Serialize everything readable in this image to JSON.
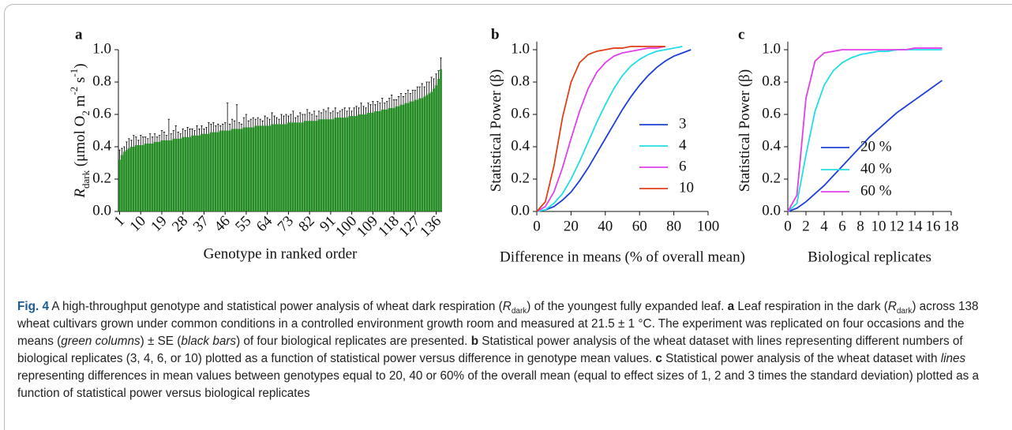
{
  "chart_data": [
    {
      "type": "bar",
      "panel": "a",
      "xlabel": "Genotype in ranked order",
      "ylabel": [
        {
          "text": "R",
          "style": "italic"
        },
        {
          "text": "dark",
          "style": "sub"
        },
        {
          "text": " (μmol O",
          "style": "normal"
        },
        {
          "text": "2",
          "style": "sub"
        },
        {
          "text": " m",
          "style": "normal"
        },
        {
          "text": "-2",
          "style": "sup"
        },
        {
          "text": " s",
          "style": "normal"
        },
        {
          "text": "-1",
          "style": "sup"
        },
        {
          "text": ")",
          "style": "normal"
        }
      ],
      "categories": [
        "1",
        null,
        null,
        null,
        null,
        null,
        null,
        null,
        null,
        "10",
        null,
        null,
        null,
        null,
        null,
        null,
        null,
        null,
        "19",
        null,
        null,
        null,
        null,
        null,
        null,
        null,
        null,
        "28",
        null,
        null,
        null,
        null,
        null,
        null,
        null,
        null,
        "37",
        null,
        null,
        null,
        null,
        null,
        null,
        null,
        null,
        "46",
        null,
        null,
        null,
        null,
        null,
        null,
        null,
        null,
        "55",
        null,
        null,
        null,
        null,
        null,
        null,
        null,
        null,
        "64",
        null,
        null,
        null,
        null,
        null,
        null,
        null,
        null,
        "73",
        null,
        null,
        null,
        null,
        null,
        null,
        null,
        null,
        "82",
        null,
        null,
        null,
        null,
        null,
        null,
        null,
        null,
        "91",
        null,
        null,
        null,
        null,
        null,
        null,
        null,
        null,
        "100",
        null,
        null,
        null,
        null,
        null,
        null,
        null,
        null,
        "109",
        null,
        null,
        null,
        null,
        null,
        null,
        null,
        null,
        "118",
        null,
        null,
        null,
        null,
        null,
        null,
        null,
        null,
        "127",
        null,
        null,
        null,
        null,
        null,
        null,
        null,
        null,
        "136",
        null,
        null
      ],
      "values": [
        0.32,
        0.35,
        0.37,
        0.38,
        0.39,
        0.4,
        0.4,
        0.41,
        0.41,
        0.41,
        0.41,
        0.42,
        0.42,
        0.42,
        0.42,
        0.43,
        0.43,
        0.43,
        0.44,
        0.44,
        0.44,
        0.44,
        0.44,
        0.45,
        0.45,
        0.45,
        0.45,
        0.46,
        0.46,
        0.46,
        0.46,
        0.47,
        0.47,
        0.47,
        0.47,
        0.48,
        0.48,
        0.48,
        0.48,
        0.49,
        0.49,
        0.49,
        0.49,
        0.5,
        0.5,
        0.5,
        0.5,
        0.5,
        0.51,
        0.51,
        0.51,
        0.51,
        0.51,
        0.52,
        0.52,
        0.52,
        0.52,
        0.52,
        0.53,
        0.53,
        0.53,
        0.53,
        0.53,
        0.53,
        0.53,
        0.54,
        0.54,
        0.54,
        0.54,
        0.54,
        0.54,
        0.54,
        0.55,
        0.55,
        0.55,
        0.55,
        0.55,
        0.55,
        0.55,
        0.56,
        0.56,
        0.56,
        0.56,
        0.56,
        0.56,
        0.57,
        0.57,
        0.57,
        0.57,
        0.57,
        0.57,
        0.57,
        0.58,
        0.58,
        0.58,
        0.58,
        0.58,
        0.58,
        0.59,
        0.59,
        0.59,
        0.59,
        0.6,
        0.6,
        0.6,
        0.6,
        0.61,
        0.61,
        0.61,
        0.62,
        0.62,
        0.62,
        0.63,
        0.63,
        0.63,
        0.64,
        0.64,
        0.64,
        0.65,
        0.65,
        0.66,
        0.66,
        0.67,
        0.67,
        0.68,
        0.68,
        0.69,
        0.69,
        0.7,
        0.7,
        0.71,
        0.72,
        0.73,
        0.74,
        0.76,
        0.78,
        0.82,
        0.88
      ],
      "errors": [
        0.06,
        0.04,
        0.03,
        0.05,
        0.06,
        0.04,
        0.07,
        0.05,
        0.03,
        0.06,
        0.05,
        0.04,
        0.03,
        0.06,
        0.04,
        0.05,
        0.03,
        0.04,
        0.06,
        0.05,
        0.03,
        0.13,
        0.04,
        0.05,
        0.08,
        0.04,
        0.03,
        0.05,
        0.04,
        0.06,
        0.05,
        0.04,
        0.03,
        0.06,
        0.04,
        0.05,
        0.03,
        0.04,
        0.07,
        0.05,
        0.06,
        0.04,
        0.05,
        0.03,
        0.04,
        0.05,
        0.17,
        0.04,
        0.06,
        0.05,
        0.15,
        0.04,
        0.03,
        0.06,
        0.08,
        0.04,
        0.05,
        0.06,
        0.04,
        0.05,
        0.04,
        0.03,
        0.06,
        0.05,
        0.04,
        0.07,
        0.05,
        0.04,
        0.03,
        0.06,
        0.05,
        0.06,
        0.04,
        0.05,
        0.07,
        0.03,
        0.04,
        0.06,
        0.05,
        0.04,
        0.07,
        0.05,
        0.04,
        0.06,
        0.03,
        0.05,
        0.04,
        0.06,
        0.05,
        0.07,
        0.04,
        0.05,
        0.06,
        0.03,
        0.04,
        0.05,
        0.06,
        0.04,
        0.05,
        0.03,
        0.05,
        0.06,
        0.04,
        0.07,
        0.05,
        0.04,
        0.06,
        0.05,
        0.07,
        0.04,
        0.06,
        0.05,
        0.07,
        0.04,
        0.05,
        0.06,
        0.08,
        0.05,
        0.04,
        0.06,
        0.07,
        0.05,
        0.06,
        0.08,
        0.05,
        0.07,
        0.06,
        0.08,
        0.07,
        0.09,
        0.06,
        0.08,
        0.07,
        0.09,
        0.06,
        0.07,
        0.05,
        0.07
      ],
      "color": "#228b22",
      "error_color": "#000000",
      "ylim": [
        0,
        1.0
      ],
      "yticks": [
        {
          "value": 0,
          "label": "0.0"
        },
        {
          "value": 0.2,
          "label": "0.2"
        },
        {
          "value": 0.4,
          "label": "0.4"
        },
        {
          "value": 0.6,
          "label": "0.6"
        },
        {
          "value": 0.8,
          "label": "0.8"
        },
        {
          "value": 1.0,
          "label": "1.0"
        }
      ]
    },
    {
      "type": "line",
      "panel": "b",
      "xlabel": "Difference in means (% of overall mean)",
      "ylabel": [
        {
          "text": "Statistical Power (β)",
          "style": "normal"
        }
      ],
      "x": [
        0,
        5,
        10,
        15,
        20,
        25,
        30,
        35,
        40,
        45,
        50,
        55,
        60,
        65,
        70,
        75,
        80,
        85,
        90
      ],
      "series": [
        {
          "name": "3",
          "color": "#1f3fd6",
          "values": [
            0,
            0.01,
            0.03,
            0.07,
            0.12,
            0.19,
            0.27,
            0.36,
            0.45,
            0.54,
            0.63,
            0.71,
            0.78,
            0.84,
            0.89,
            0.93,
            0.96,
            0.98,
            1.0
          ]
        },
        {
          "name": "4",
          "color": "#22dde8",
          "values": [
            0,
            0.01,
            0.05,
            0.11,
            0.2,
            0.31,
            0.43,
            0.55,
            0.66,
            0.76,
            0.84,
            0.9,
            0.94,
            0.97,
            0.99,
            1.0,
            1.01,
            1.02,
            null
          ]
        },
        {
          "name": "6",
          "color": "#e040e8",
          "values": [
            0,
            0.03,
            0.12,
            0.27,
            0.45,
            0.62,
            0.76,
            0.86,
            0.92,
            0.96,
            0.98,
            0.99,
            1.0,
            1.01,
            1.01,
            1.02,
            null,
            null,
            null
          ]
        },
        {
          "name": "10",
          "color": "#e0401a",
          "values": [
            0,
            0.06,
            0.28,
            0.58,
            0.8,
            0.92,
            0.97,
            0.99,
            1.0,
            1.01,
            1.01,
            1.02,
            1.02,
            1.02,
            1.02,
            1.02,
            null,
            null,
            null
          ]
        }
      ],
      "xlim": [
        0,
        100
      ],
      "xticks": [
        0,
        20,
        40,
        60,
        80,
        100
      ],
      "ylim": [
        0,
        1.05
      ],
      "yticks": [
        {
          "value": 0,
          "label": "0.0"
        },
        {
          "value": 0.2,
          "label": "0.2"
        },
        {
          "value": 0.4,
          "label": "0.4"
        },
        {
          "value": 0.6,
          "label": "0.6"
        },
        {
          "value": 0.8,
          "label": "0.8"
        },
        {
          "value": 1.0,
          "label": "1.0"
        }
      ]
    },
    {
      "type": "line",
      "panel": "c",
      "xlabel": "Biological replicates",
      "ylabel": [
        {
          "text": "Statistical Power (β)",
          "style": "normal"
        }
      ],
      "x": [
        0,
        1,
        2,
        3,
        4,
        5,
        6,
        7,
        8,
        9,
        10,
        11,
        12,
        13,
        14,
        15,
        16,
        17
      ],
      "series": [
        {
          "name": "20 %",
          "color": "#1f3fd6",
          "values": [
            0,
            0.02,
            0.06,
            0.11,
            0.16,
            0.22,
            0.28,
            0.34,
            0.4,
            0.46,
            0.51,
            0.56,
            0.61,
            0.65,
            0.69,
            0.73,
            0.77,
            0.81
          ]
        },
        {
          "name": "40 %",
          "color": "#22dde8",
          "values": [
            0,
            0.05,
            0.35,
            0.62,
            0.78,
            0.87,
            0.92,
            0.95,
            0.97,
            0.98,
            0.99,
            0.99,
            1.0,
            1.0,
            1.0,
            1.0,
            1.0,
            1.0
          ]
        },
        {
          "name": "60 %",
          "color": "#e040e8",
          "values": [
            0,
            0.1,
            0.7,
            0.93,
            0.98,
            0.99,
            1.0,
            1.0,
            1.0,
            1.0,
            1.0,
            1.0,
            1.0,
            1.0,
            1.01,
            1.01,
            1.01,
            1.01
          ]
        }
      ],
      "xlim": [
        0,
        18
      ],
      "xticks": [
        0,
        2,
        4,
        6,
        8,
        10,
        12,
        14,
        16,
        18
      ],
      "ylim": [
        0,
        1.05
      ],
      "yticks": [
        {
          "value": 0,
          "label": "0.0"
        },
        {
          "value": 0.2,
          "label": "0.2"
        },
        {
          "value": 0.4,
          "label": "0.4"
        },
        {
          "value": 0.6,
          "label": "0.6"
        },
        {
          "value": 0.8,
          "label": "0.8"
        },
        {
          "value": 1.0,
          "label": "1.0"
        }
      ]
    }
  ],
  "caption": {
    "label": "Fig. 4",
    "segments": [
      {
        "text": " A high-throughput genotype and statistical power analysis of wheat dark respiration (",
        "style": "normal"
      },
      {
        "text": "R",
        "style": "italic"
      },
      {
        "text": "dark",
        "style": "sub"
      },
      {
        "text": ") of the youngest fully expanded leaf. ",
        "style": "normal"
      },
      {
        "text": "a",
        "style": "bold"
      },
      {
        "text": " Leaf respiration in the dark (",
        "style": "normal"
      },
      {
        "text": "R",
        "style": "italic"
      },
      {
        "text": "dark",
        "style": "sub"
      },
      {
        "text": ") across 138 wheat cultivars grown under common conditions in a controlled environment growth room and measured at 21.5 ± 1 °C. The experiment was replicated on four occasions and the means (",
        "style": "normal"
      },
      {
        "text": "green columns",
        "style": "italic"
      },
      {
        "text": ") ± SE (",
        "style": "normal"
      },
      {
        "text": "black bars",
        "style": "italic"
      },
      {
        "text": ") of four biological replicates are presented. ",
        "style": "normal"
      },
      {
        "text": "b",
        "style": "bold"
      },
      {
        "text": " Statistical power analysis of the wheat dataset with lines representing different numbers of biological replicates (3, 4, 6, or 10) plotted as a function of statistical power versus difference in genotype mean values. ",
        "style": "normal"
      },
      {
        "text": "c",
        "style": "bold"
      },
      {
        "text": " Statistical power analysis of the wheat dataset with ",
        "style": "normal"
      },
      {
        "text": "lines",
        "style": "italic"
      },
      {
        "text": " representing differences in mean values between genotypes equal to 20, 40 or 60% of the overall mean (equal to effect sizes of 1, 2 and 3 times the standard deviation) plotted as a function of statistical power versus biological replicates",
        "style": "normal"
      }
    ]
  }
}
